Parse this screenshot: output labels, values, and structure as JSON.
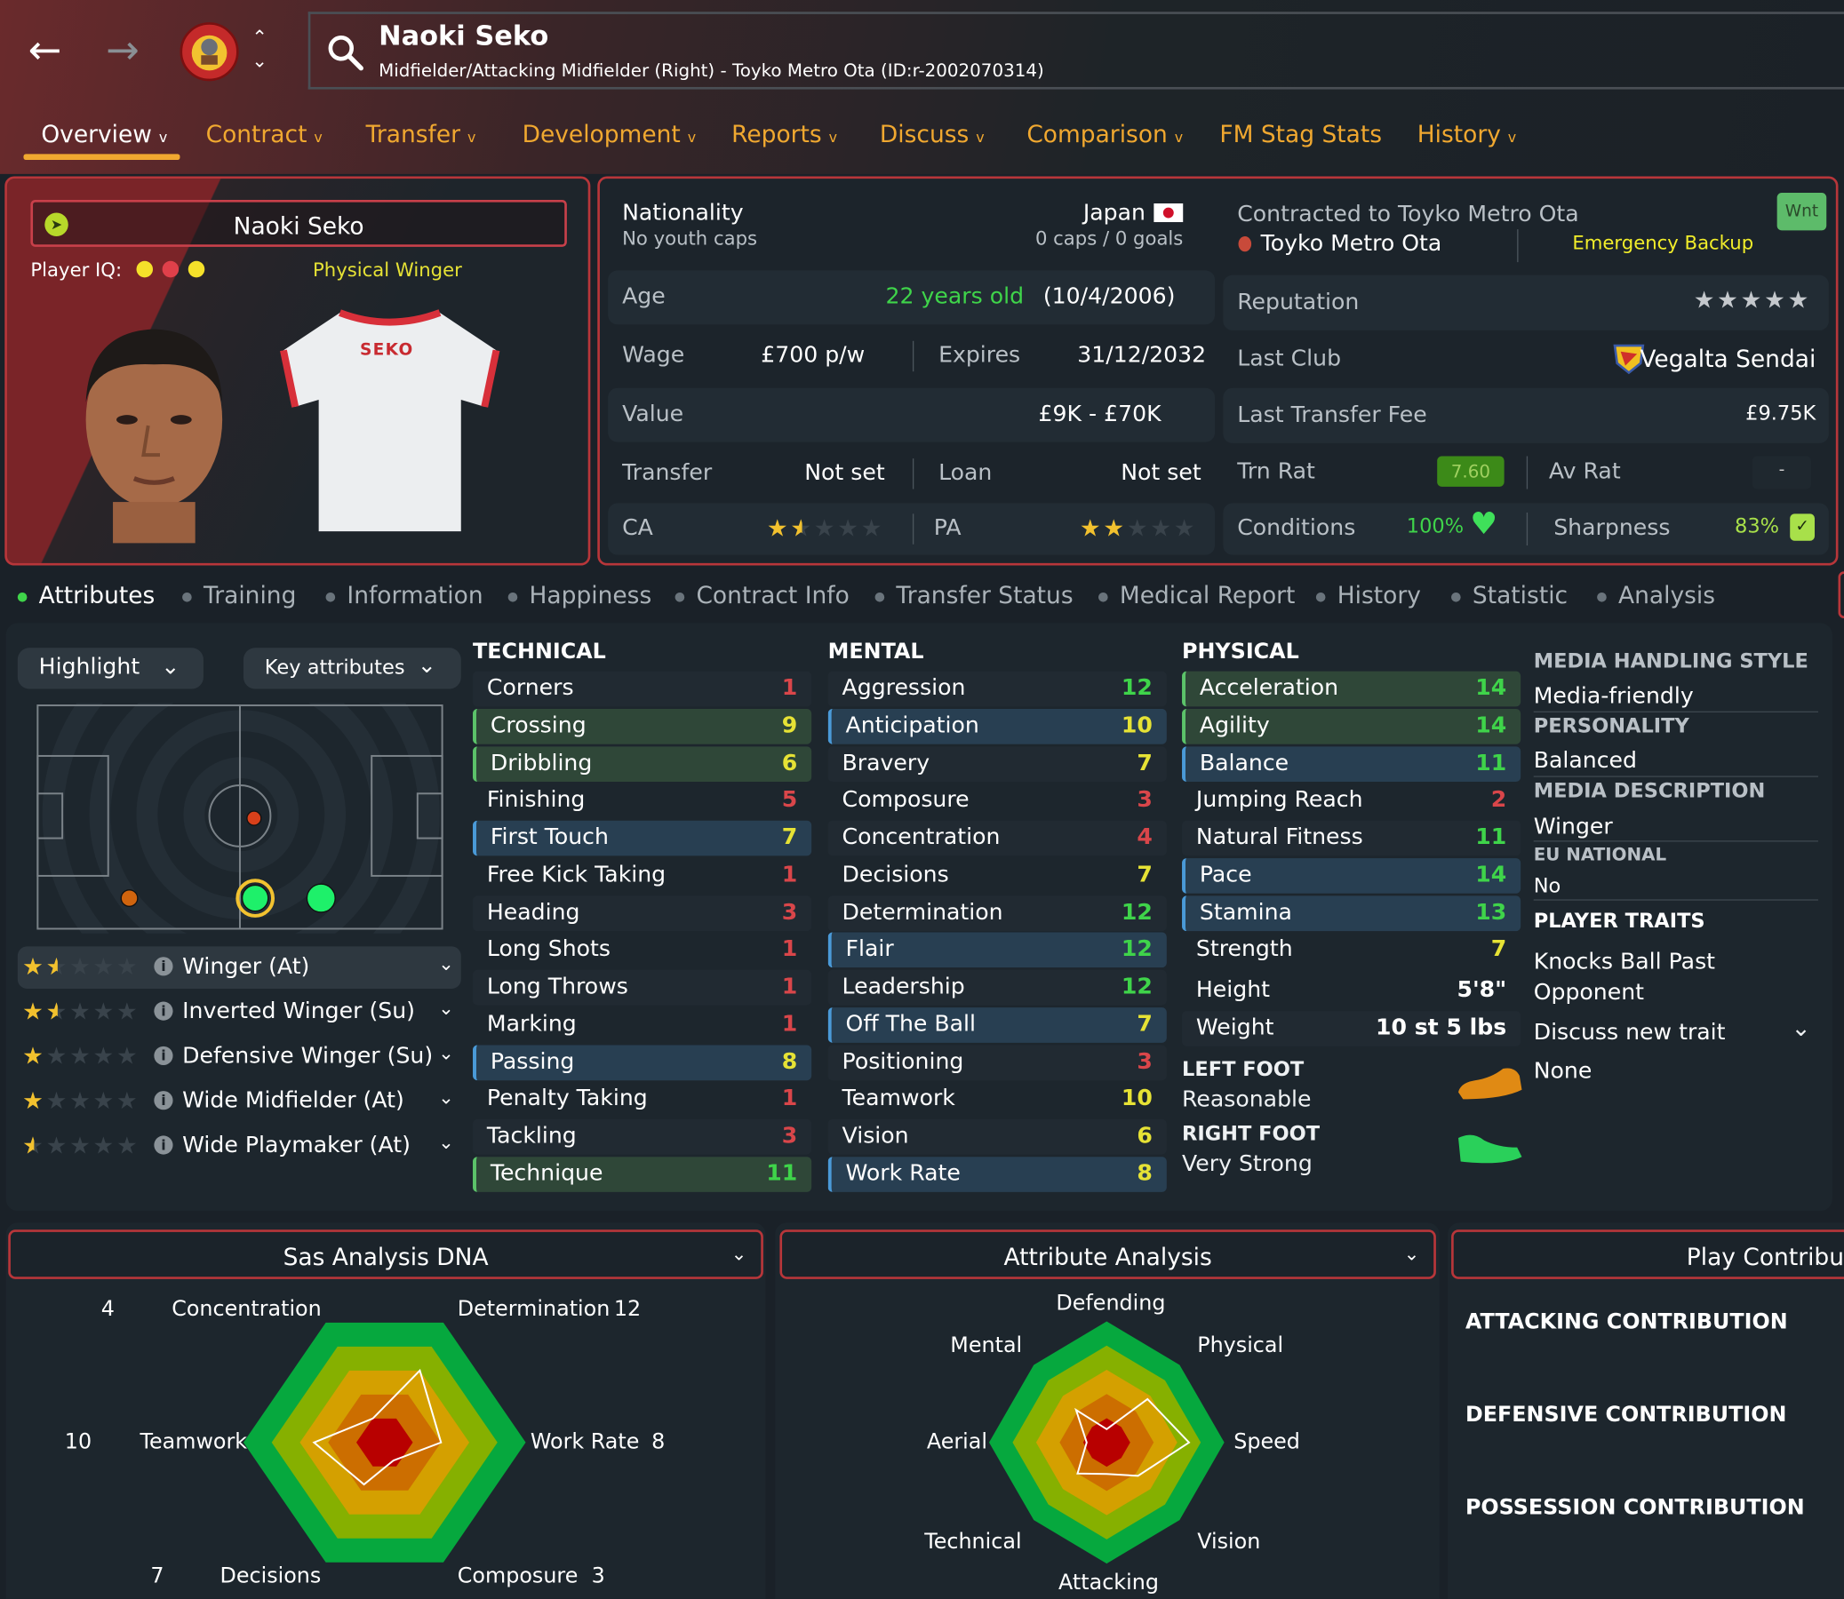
{
  "header": {
    "player_name": "Naoki Seko",
    "subtitle": "Midfielder/Attacking Midfielder (Right) - Toyko Metro Ota (ID:r-2002070314)",
    "back_icon": "arrow-left",
    "forward_icon": "arrow-right",
    "search_icon": "magnifier"
  },
  "nav": {
    "tabs": [
      {
        "label": "Overview",
        "dropdown": true,
        "active": true
      },
      {
        "label": "Contract",
        "dropdown": true
      },
      {
        "label": "Transfer",
        "dropdown": true
      },
      {
        "label": "Development",
        "dropdown": true
      },
      {
        "label": "Reports",
        "dropdown": true
      },
      {
        "label": "Discuss",
        "dropdown": true
      },
      {
        "label": "Comparison",
        "dropdown": true
      },
      {
        "label": "FM Stag Stats",
        "dropdown": false
      },
      {
        "label": "History",
        "dropdown": true
      }
    ]
  },
  "profile": {
    "name": "Naoki Seko",
    "player_iq_label": "Player IQ:",
    "player_iq_dots": [
      "#f5e12a",
      "#e0404a",
      "#f5e12a"
    ],
    "role_label": "Physical Winger",
    "shirt_name": "SEKO"
  },
  "info": {
    "nationality_label": "Nationality",
    "nationality": "Japan",
    "youth_caps": "No youth caps",
    "caps_goals": "0 caps / 0 goals",
    "age_label": "Age",
    "age": "22 years old",
    "dob": "(10/4/2006)",
    "wage_label": "Wage",
    "wage": "£700 p/w",
    "expires_label": "Expires",
    "expires": "31/12/2032",
    "value_label": "Value",
    "value": "£9K - £70K",
    "transfer_label": "Transfer",
    "transfer": "Not set",
    "loan_label": "Loan",
    "loan": "Not set",
    "ca_label": "CA",
    "ca_stars": 1.5,
    "pa_label": "PA",
    "pa_stars": 2,
    "contracted_label": "Contracted to Toyko Metro Ota",
    "club": "Toyko Metro Ota",
    "squad_status": "Emergency Backup",
    "wnt_badge": "Wnt",
    "reputation_label": "Reputation",
    "reputation_stars": 5,
    "last_club_label": "Last Club",
    "last_club": "Vegalta Sendai",
    "last_fee_label": "Last Transfer Fee",
    "last_fee": "£9.75K",
    "trn_rat_label": "Trn Rat",
    "trn_rat": "7.60",
    "av_rat_label": "Av Rat",
    "av_rat": "-",
    "conditions_label": "Conditions",
    "conditions": "100%",
    "sharpness_label": "Sharpness",
    "sharpness": "83%"
  },
  "subtabs": [
    "Attributes",
    "Training",
    "Information",
    "Happiness",
    "Contract Info",
    "Transfer Status",
    "Medical Report",
    "History",
    "Statistic",
    "Analysis"
  ],
  "controls": {
    "highlight": "Highlight",
    "key_attributes": "Key attributes"
  },
  "roles": [
    {
      "label": "Winger (At)",
      "stars": 1.5,
      "selected": true
    },
    {
      "label": "Inverted Winger (Su)",
      "stars": 1.5
    },
    {
      "label": "Defensive Winger (Su)",
      "stars": 1
    },
    {
      "label": "Wide Midfielder (At)",
      "stars": 1
    },
    {
      "label": "Wide Playmaker (At)",
      "stars": 0.5
    }
  ],
  "attributes": {
    "technical_title": "TECHNICAL",
    "technical": [
      {
        "name": "Corners",
        "value": 1,
        "hl": ""
      },
      {
        "name": "Crossing",
        "value": 9,
        "hl": "green"
      },
      {
        "name": "Dribbling",
        "value": 6,
        "hl": "green"
      },
      {
        "name": "Finishing",
        "value": 5,
        "hl": ""
      },
      {
        "name": "First Touch",
        "value": 7,
        "hl": "blue"
      },
      {
        "name": "Free Kick Taking",
        "value": 1,
        "hl": ""
      },
      {
        "name": "Heading",
        "value": 3,
        "hl": ""
      },
      {
        "name": "Long Shots",
        "value": 1,
        "hl": ""
      },
      {
        "name": "Long Throws",
        "value": 1,
        "hl": ""
      },
      {
        "name": "Marking",
        "value": 1,
        "hl": ""
      },
      {
        "name": "Passing",
        "value": 8,
        "hl": "blue"
      },
      {
        "name": "Penalty Taking",
        "value": 1,
        "hl": ""
      },
      {
        "name": "Tackling",
        "value": 3,
        "hl": ""
      },
      {
        "name": "Technique",
        "value": 11,
        "hl": "green"
      }
    ],
    "mental_title": "MENTAL",
    "mental": [
      {
        "name": "Aggression",
        "value": 12,
        "hl": ""
      },
      {
        "name": "Anticipation",
        "value": 10,
        "hl": "blue"
      },
      {
        "name": "Bravery",
        "value": 7,
        "hl": ""
      },
      {
        "name": "Composure",
        "value": 3,
        "hl": ""
      },
      {
        "name": "Concentration",
        "value": 4,
        "hl": ""
      },
      {
        "name": "Decisions",
        "value": 7,
        "hl": ""
      },
      {
        "name": "Determination",
        "value": 12,
        "hl": ""
      },
      {
        "name": "Flair",
        "value": 12,
        "hl": "blue"
      },
      {
        "name": "Leadership",
        "value": 12,
        "hl": ""
      },
      {
        "name": "Off The Ball",
        "value": 7,
        "hl": "blue"
      },
      {
        "name": "Positioning",
        "value": 3,
        "hl": ""
      },
      {
        "name": "Teamwork",
        "value": 10,
        "hl": ""
      },
      {
        "name": "Vision",
        "value": 6,
        "hl": ""
      },
      {
        "name": "Work Rate",
        "value": 8,
        "hl": "blue"
      }
    ],
    "physical_title": "PHYSICAL",
    "physical": [
      {
        "name": "Acceleration",
        "value": 14,
        "hl": "green"
      },
      {
        "name": "Agility",
        "value": 14,
        "hl": "green"
      },
      {
        "name": "Balance",
        "value": 11,
        "hl": "blue"
      },
      {
        "name": "Jumping Reach",
        "value": 2,
        "hl": ""
      },
      {
        "name": "Natural Fitness",
        "value": 11,
        "hl": ""
      },
      {
        "name": "Pace",
        "value": 14,
        "hl": "blue"
      },
      {
        "name": "Stamina",
        "value": 13,
        "hl": "blue"
      },
      {
        "name": "Strength",
        "value": 7,
        "hl": ""
      }
    ],
    "height_label": "Height",
    "height": "5'8\"",
    "weight_label": "Weight",
    "weight": "10 st 5 lbs",
    "left_foot_label": "LEFT FOOT",
    "left_foot": "Reasonable",
    "right_foot_label": "RIGHT FOOT",
    "right_foot": "Very Strong",
    "colors": {
      "low": "#d9464a",
      "mid": "#e6e235",
      "high": "#3fd44a"
    }
  },
  "side_info": {
    "media_style_label": "MEDIA HANDLING STYLE",
    "media_style": "Media-friendly",
    "personality_label": "PERSONALITY",
    "personality": "Balanced",
    "media_desc_label": "MEDIA DESCRIPTION",
    "media_desc": "Winger",
    "eu_label": "EU NATIONAL",
    "eu": "No",
    "traits_label": "PLAYER TRAITS",
    "traits": [
      "Knocks Ball Past",
      "Opponent"
    ],
    "discuss_trait": "Discuss new trait",
    "none": "None"
  },
  "panels": {
    "dna_title": "Sas Analysis DNA",
    "analysis_title": "Attribute Analysis",
    "contrib_title": "Play Contributi",
    "attacking": "ATTACKING CONTRIBUTION",
    "defensive": "DEFENSIVE CONTRIBUTION",
    "possession": "POSSESSION CONTRIBUTION"
  },
  "chart_data": [
    {
      "type": "radar",
      "title": "Sas Analysis DNA",
      "max": 20,
      "axes": [
        "Concentration",
        "Determination",
        "Work Rate",
        "Composure",
        "Decisions",
        "Teamwork"
      ],
      "values": [
        4,
        12,
        8,
        3,
        7,
        10
      ],
      "band_colors": [
        "#b80000",
        "#cc6e00",
        "#d4a000",
        "#86b000",
        "#06a83e"
      ]
    },
    {
      "type": "radar",
      "title": "Attribute Analysis",
      "max": 20,
      "axes": [
        "Defending",
        "Physical",
        "Speed",
        "Vision",
        "Attacking",
        "Technical",
        "Aerial",
        "Mental"
      ],
      "values": [
        2.2,
        11.2,
        14,
        8.6,
        5.2,
        8,
        3.4,
        8.4
      ],
      "band_colors": [
        "#b80000",
        "#cc6e00",
        "#d4a000",
        "#86b000",
        "#06a83e"
      ]
    }
  ]
}
